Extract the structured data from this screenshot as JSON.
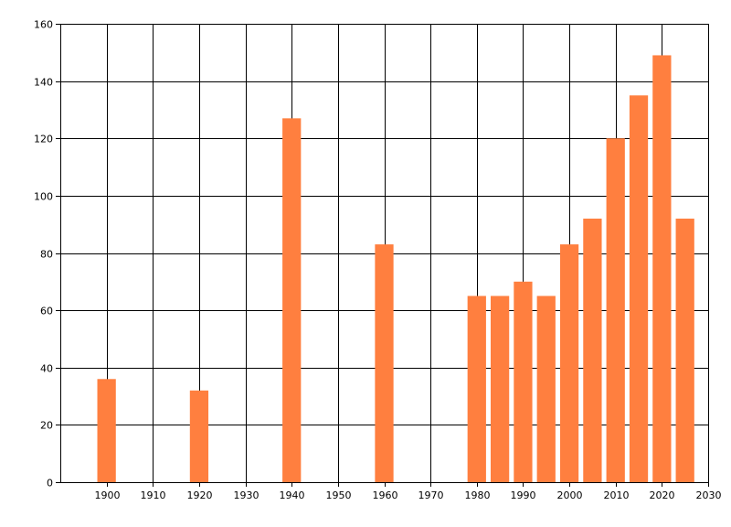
{
  "chart_data": {
    "type": "bar",
    "title": "",
    "xlabel": "",
    "ylabel": "",
    "xlim": [
      1890,
      2030
    ],
    "ylim": [
      0,
      160
    ],
    "x_ticks": [
      1900,
      1910,
      1920,
      1930,
      1940,
      1950,
      1960,
      1970,
      1980,
      1990,
      2000,
      2010,
      2020,
      2030
    ],
    "y_ticks": [
      0,
      20,
      40,
      60,
      80,
      100,
      120,
      140,
      160
    ],
    "grid": true,
    "legend": "none",
    "bar_color": "#FF7F3F",
    "bar_width_years": 4,
    "x": [
      1900,
      1920,
      1940,
      1960,
      1980,
      1985,
      1990,
      1995,
      2000,
      2005,
      2010,
      2015,
      2020,
      2025
    ],
    "values": [
      36,
      32,
      127,
      83,
      65,
      65,
      70,
      65,
      83,
      92,
      120,
      135,
      149,
      92
    ]
  }
}
